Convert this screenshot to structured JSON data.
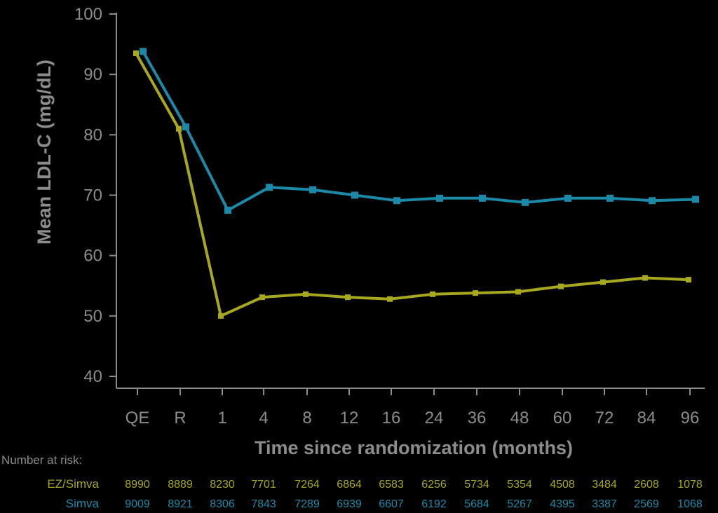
{
  "chart_data": {
    "type": "line",
    "categories": [
      "QE",
      "R",
      "1",
      "4",
      "8",
      "12",
      "16",
      "24",
      "36",
      "48",
      "60",
      "72",
      "84",
      "96"
    ],
    "xlabel": "Time since randomization (months)",
    "ylabel": "Mean LDL-C (mg/dL)",
    "ylim": [
      40,
      100
    ],
    "yticks": [
      "40",
      "50",
      "60",
      "70",
      "80",
      "90",
      "100"
    ],
    "grid": false,
    "series": [
      {
        "name": "EZ/Simva",
        "color": "#a8a81e",
        "values": [
          93.5,
          81.0,
          50.0,
          53.1,
          53.6,
          53.1,
          52.8,
          53.6,
          53.8,
          54.0,
          54.9,
          55.6,
          56.3,
          56.0
        ]
      },
      {
        "name": "Simva",
        "color": "#1a8aa8",
        "values": [
          93.8,
          81.3,
          67.5,
          71.3,
          70.9,
          70.0,
          69.1,
          69.5,
          69.5,
          68.8,
          69.5,
          69.5,
          69.1,
          69.3
        ]
      }
    ],
    "risk_table": {
      "title": "Number at risk:",
      "rows": [
        {
          "label": "EZ/Simva",
          "color": "#a8a81e",
          "values": [
            "8990",
            "8889",
            "8230",
            "7701",
            "7264",
            "6864",
            "6583",
            "6256",
            "5734",
            "5354",
            "4508",
            "3484",
            "2608",
            "1078"
          ]
        },
        {
          "label": "Simva",
          "color": "#1a8aa8",
          "values": [
            "9009",
            "8921",
            "8306",
            "7843",
            "7289",
            "6939",
            "6607",
            "6192",
            "5684",
            "5267",
            "4395",
            "3387",
            "2569",
            "1068"
          ]
        }
      ]
    }
  }
}
